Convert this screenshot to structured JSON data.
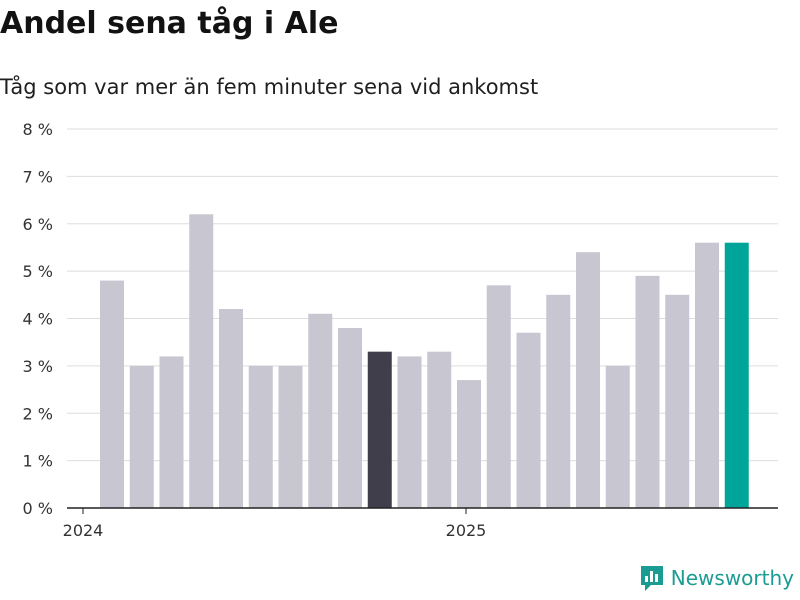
{
  "title": "Andel sena tåg i Ale",
  "subtitle": "Tåg som var mer än fem minuter sena vid ankomst",
  "brand": {
    "name": "Newsworthy",
    "icon": "newsworthy-logo-icon"
  },
  "colors": {
    "bar_default": "#c8c6d0",
    "bar_highlight_dark": "#3f3e4a",
    "bar_highlight_latest": "#00a599",
    "grid": "#dddddd",
    "axis": "#222222",
    "brand": "#1b9c92"
  },
  "chart_data": {
    "type": "bar",
    "categories": [
      "2024-01",
      "2024-02",
      "2024-03",
      "2024-04",
      "2024-05",
      "2024-06",
      "2024-07",
      "2024-08",
      "2024-09",
      "2024-10",
      "2024-11",
      "2024-12",
      "2025-01",
      "2025-02",
      "2025-03",
      "2025-04",
      "2025-05",
      "2025-06",
      "2025-07",
      "2025-08",
      "2025-09",
      "2025-10"
    ],
    "values": [
      4.8,
      3.0,
      3.2,
      6.2,
      4.2,
      3.0,
      3.0,
      4.1,
      3.8,
      3.3,
      3.2,
      3.3,
      2.7,
      4.7,
      3.7,
      4.5,
      5.4,
      3.0,
      4.9,
      4.5,
      5.6,
      5.6
    ],
    "highlight": {
      "2024-10": "bar_highlight_dark",
      "2025-10": "bar_highlight_latest"
    },
    "ylim": [
      0,
      8
    ],
    "yticks": [
      0,
      1,
      2,
      3,
      4,
      5,
      6,
      7,
      8
    ],
    "ytick_labels": [
      "0 %",
      "1 %",
      "2 %",
      "3 %",
      "4 %",
      "5 %",
      "6 %",
      "7 %",
      "8 %"
    ],
    "xtick_labels": [
      {
        "category": "2024-01",
        "label": "2024"
      },
      {
        "category": "2025-01",
        "label": "2025"
      }
    ],
    "grid": true,
    "xlabel": "",
    "ylabel": ""
  }
}
